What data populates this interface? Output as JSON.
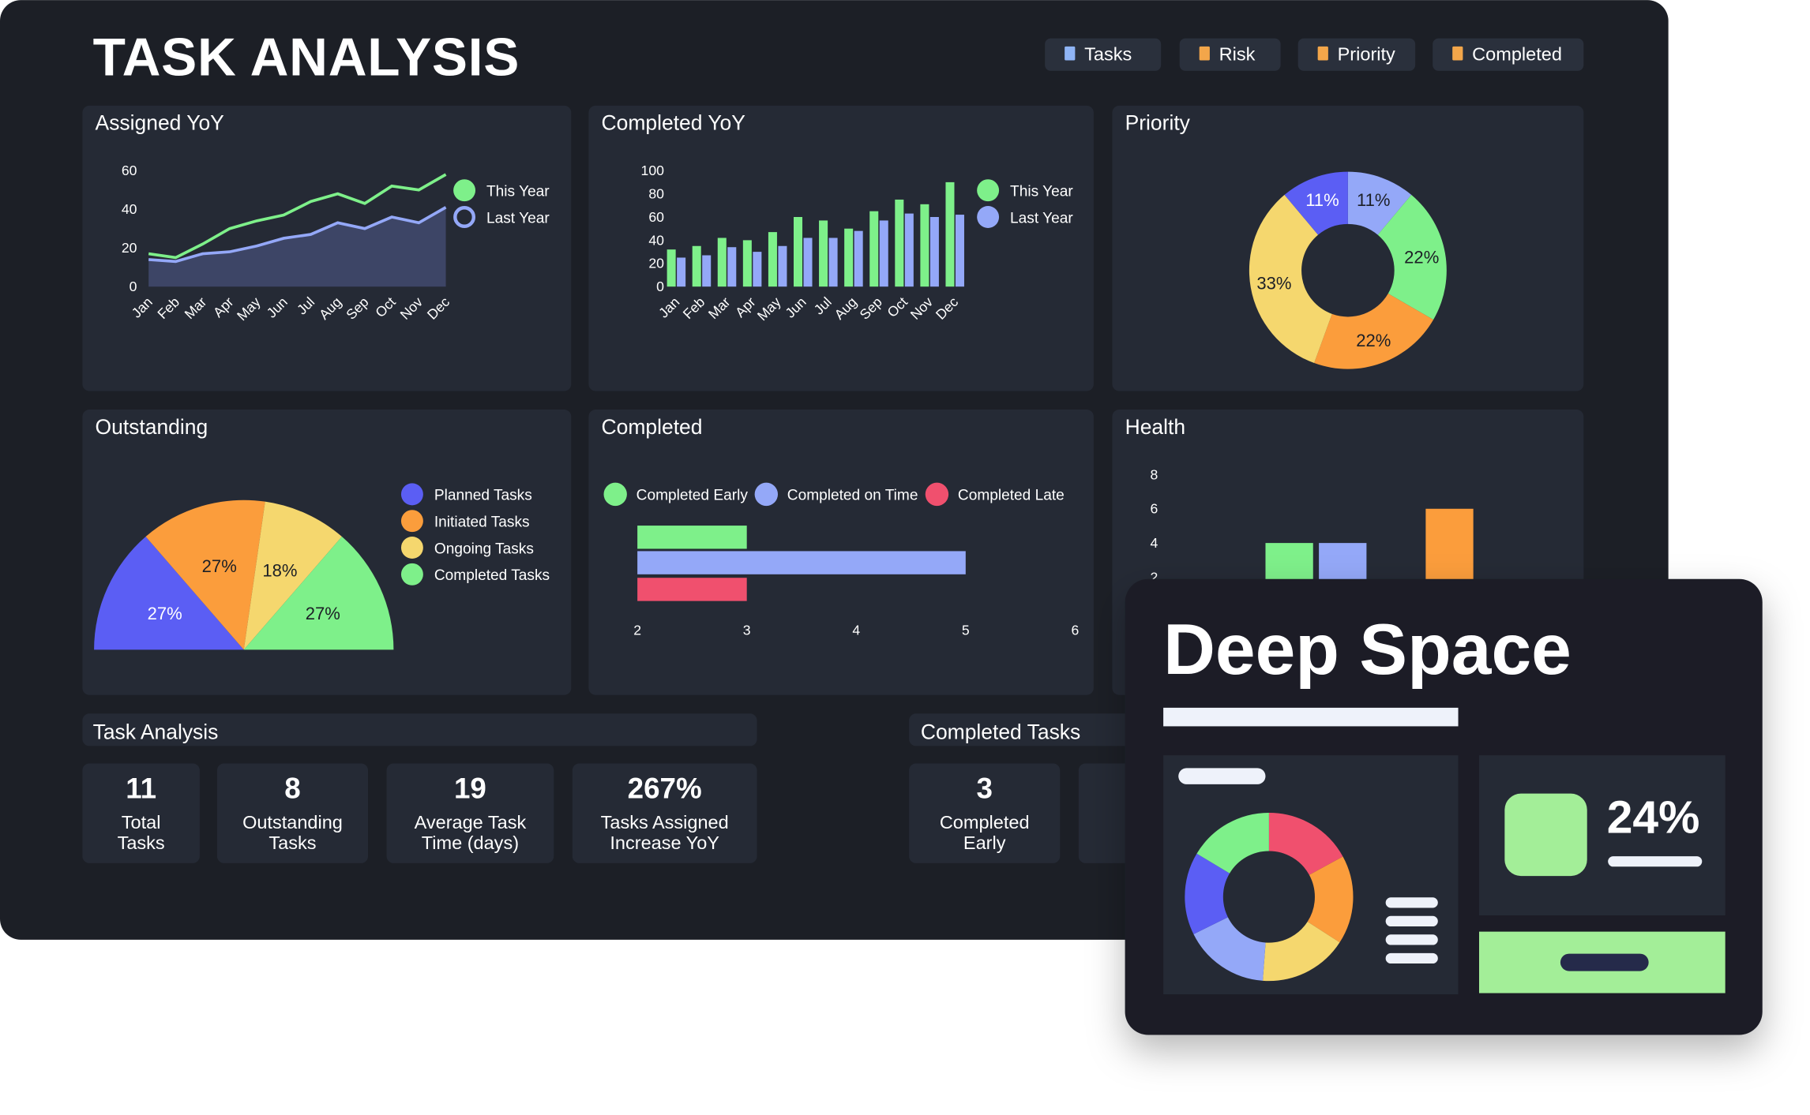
{
  "title": "TASK ANALYSIS",
  "tabs": [
    "Tasks",
    "Risk",
    "Priority",
    "Completed"
  ],
  "chart_data": [
    {
      "type": "line",
      "title": "Assigned YoY",
      "categories": [
        "Jan",
        "Feb",
        "Mar",
        "Apr",
        "May",
        "Jun",
        "Jul",
        "Aug",
        "Sep",
        "Oct",
        "Nov",
        "Dec"
      ],
      "series": [
        {
          "name": "This Year",
          "color": "#7ef08a",
          "values": [
            17,
            15,
            22,
            30,
            34,
            37,
            44,
            48,
            43,
            52,
            50,
            58
          ]
        },
        {
          "name": "Last Year",
          "color": "#94a8f8",
          "area": true,
          "values": [
            14,
            13,
            17,
            18,
            21,
            25,
            27,
            33,
            30,
            36,
            33,
            41
          ]
        }
      ],
      "ylim": [
        0,
        60
      ],
      "yticks": [
        0,
        20,
        40,
        60
      ]
    },
    {
      "type": "bar",
      "title": "Completed YoY",
      "categories": [
        "Jan",
        "Feb",
        "Mar",
        "Apr",
        "May",
        "Jun",
        "Jul",
        "Aug",
        "Sep",
        "Oct",
        "Nov",
        "Dec"
      ],
      "series": [
        {
          "name": "This Year",
          "color": "#7ef08a",
          "values": [
            32,
            35,
            42,
            40,
            47,
            60,
            57,
            50,
            65,
            75,
            71,
            90
          ]
        },
        {
          "name": "Last Year",
          "color": "#94a8f8",
          "values": [
            25,
            27,
            34,
            30,
            35,
            42,
            42,
            48,
            57,
            63,
            60,
            62
          ]
        }
      ],
      "ylim": [
        0,
        100
      ],
      "yticks": [
        0,
        20,
        40,
        60,
        80,
        100
      ]
    },
    {
      "type": "donut",
      "title": "Priority",
      "values": [
        11,
        22,
        22,
        33,
        11
      ],
      "value_labels": [
        "11%",
        "22%",
        "22%",
        "33%",
        "11%"
      ],
      "colors": [
        "#94a8f8",
        "#7ef08a",
        "#fb9d3c",
        "#f5d76e",
        "#5b5ef4"
      ]
    },
    {
      "type": "half-pie",
      "title": "Outstanding",
      "categories": [
        "Planned Tasks",
        "Initiated Tasks",
        "Ongoing Tasks",
        "Completed Tasks"
      ],
      "values": [
        27,
        27,
        18,
        27
      ],
      "value_labels": [
        "27%",
        "27%",
        "18%",
        "27%"
      ],
      "colors": [
        "#5b5ef4",
        "#fb9d3c",
        "#f5d76e",
        "#7ef08a"
      ]
    },
    {
      "type": "hbar",
      "title": "Completed",
      "series": [
        {
          "name": "Completed Early",
          "color": "#7ef08a",
          "values": [
            3
          ]
        },
        {
          "name": "Completed on Time",
          "color": "#94a8f8",
          "values": [
            5
          ]
        },
        {
          "name": "Completed Late",
          "color": "#f0506e",
          "values": [
            3
          ]
        }
      ],
      "xlim": [
        2,
        6
      ],
      "xticks": [
        2,
        3,
        4,
        5,
        6
      ]
    },
    {
      "type": "column",
      "title": "Health",
      "values": [
        4,
        4,
        6
      ],
      "colors": [
        "#7ef08a",
        "#94a8f8",
        "#fb9d3c"
      ],
      "ylim": [
        0,
        8
      ],
      "yticks": [
        2,
        4,
        6,
        8
      ]
    }
  ],
  "task_analysis": {
    "title": "Task Analysis",
    "kpis": [
      {
        "value": "11",
        "label": [
          "Total",
          "Tasks"
        ]
      },
      {
        "value": "8",
        "label": [
          "Outstanding",
          "Tasks"
        ]
      },
      {
        "value": "19",
        "label": [
          "Average Task",
          "Time (days)"
        ]
      },
      {
        "value": "267%",
        "label": [
          "Tasks Assigned",
          "Increase YoY"
        ]
      }
    ]
  },
  "completed_tasks": {
    "title": "Completed Tasks",
    "kpis": [
      {
        "value": "3",
        "label": [
          "Completed",
          "Early"
        ]
      }
    ]
  },
  "overlay": {
    "title": "Deep Space",
    "stat": "24%"
  }
}
